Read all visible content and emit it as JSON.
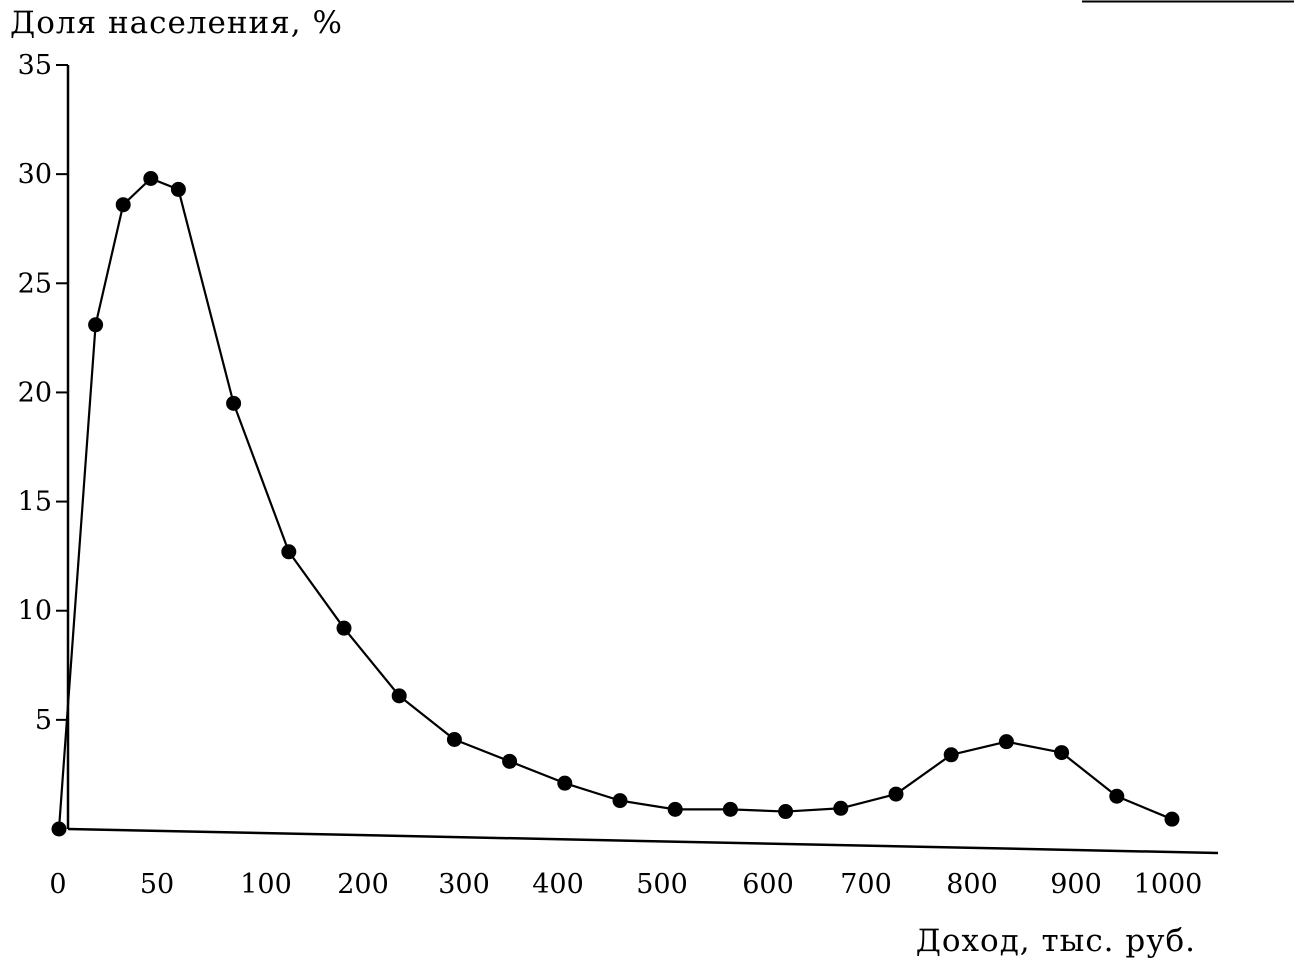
{
  "chart_data": {
    "type": "line",
    "title": "",
    "ylabel": "Доля населения, %",
    "xlabel": "Доход, тыс. руб.",
    "ylim": [
      0,
      35
    ],
    "yticks": [
      "5",
      "10",
      "15",
      "20",
      "25",
      "30",
      "35"
    ],
    "xticks": [
      "0",
      "50",
      "100",
      "200",
      "300",
      "400",
      "500",
      "600",
      "700",
      "800",
      "900",
      "1000"
    ],
    "grid": false,
    "line_color": "#000000",
    "marker": "filled-circle",
    "series": [
      {
        "x": [
          0,
          25,
          50,
          75,
          100,
          150,
          200,
          250,
          300,
          350,
          400,
          450,
          500,
          550,
          600,
          650,
          700,
          750,
          800,
          850,
          900,
          950,
          1000
        ],
        "y": [
          0,
          23.1,
          28.6,
          29.8,
          29.3,
          19.5,
          12.7,
          9.2,
          6.1,
          4.1,
          3.1,
          2.1,
          1.3,
          0.9,
          0.9,
          0.8,
          0.95,
          1.6,
          3.4,
          4.0,
          3.5,
          1.5,
          0.45
        ]
      }
    ]
  }
}
